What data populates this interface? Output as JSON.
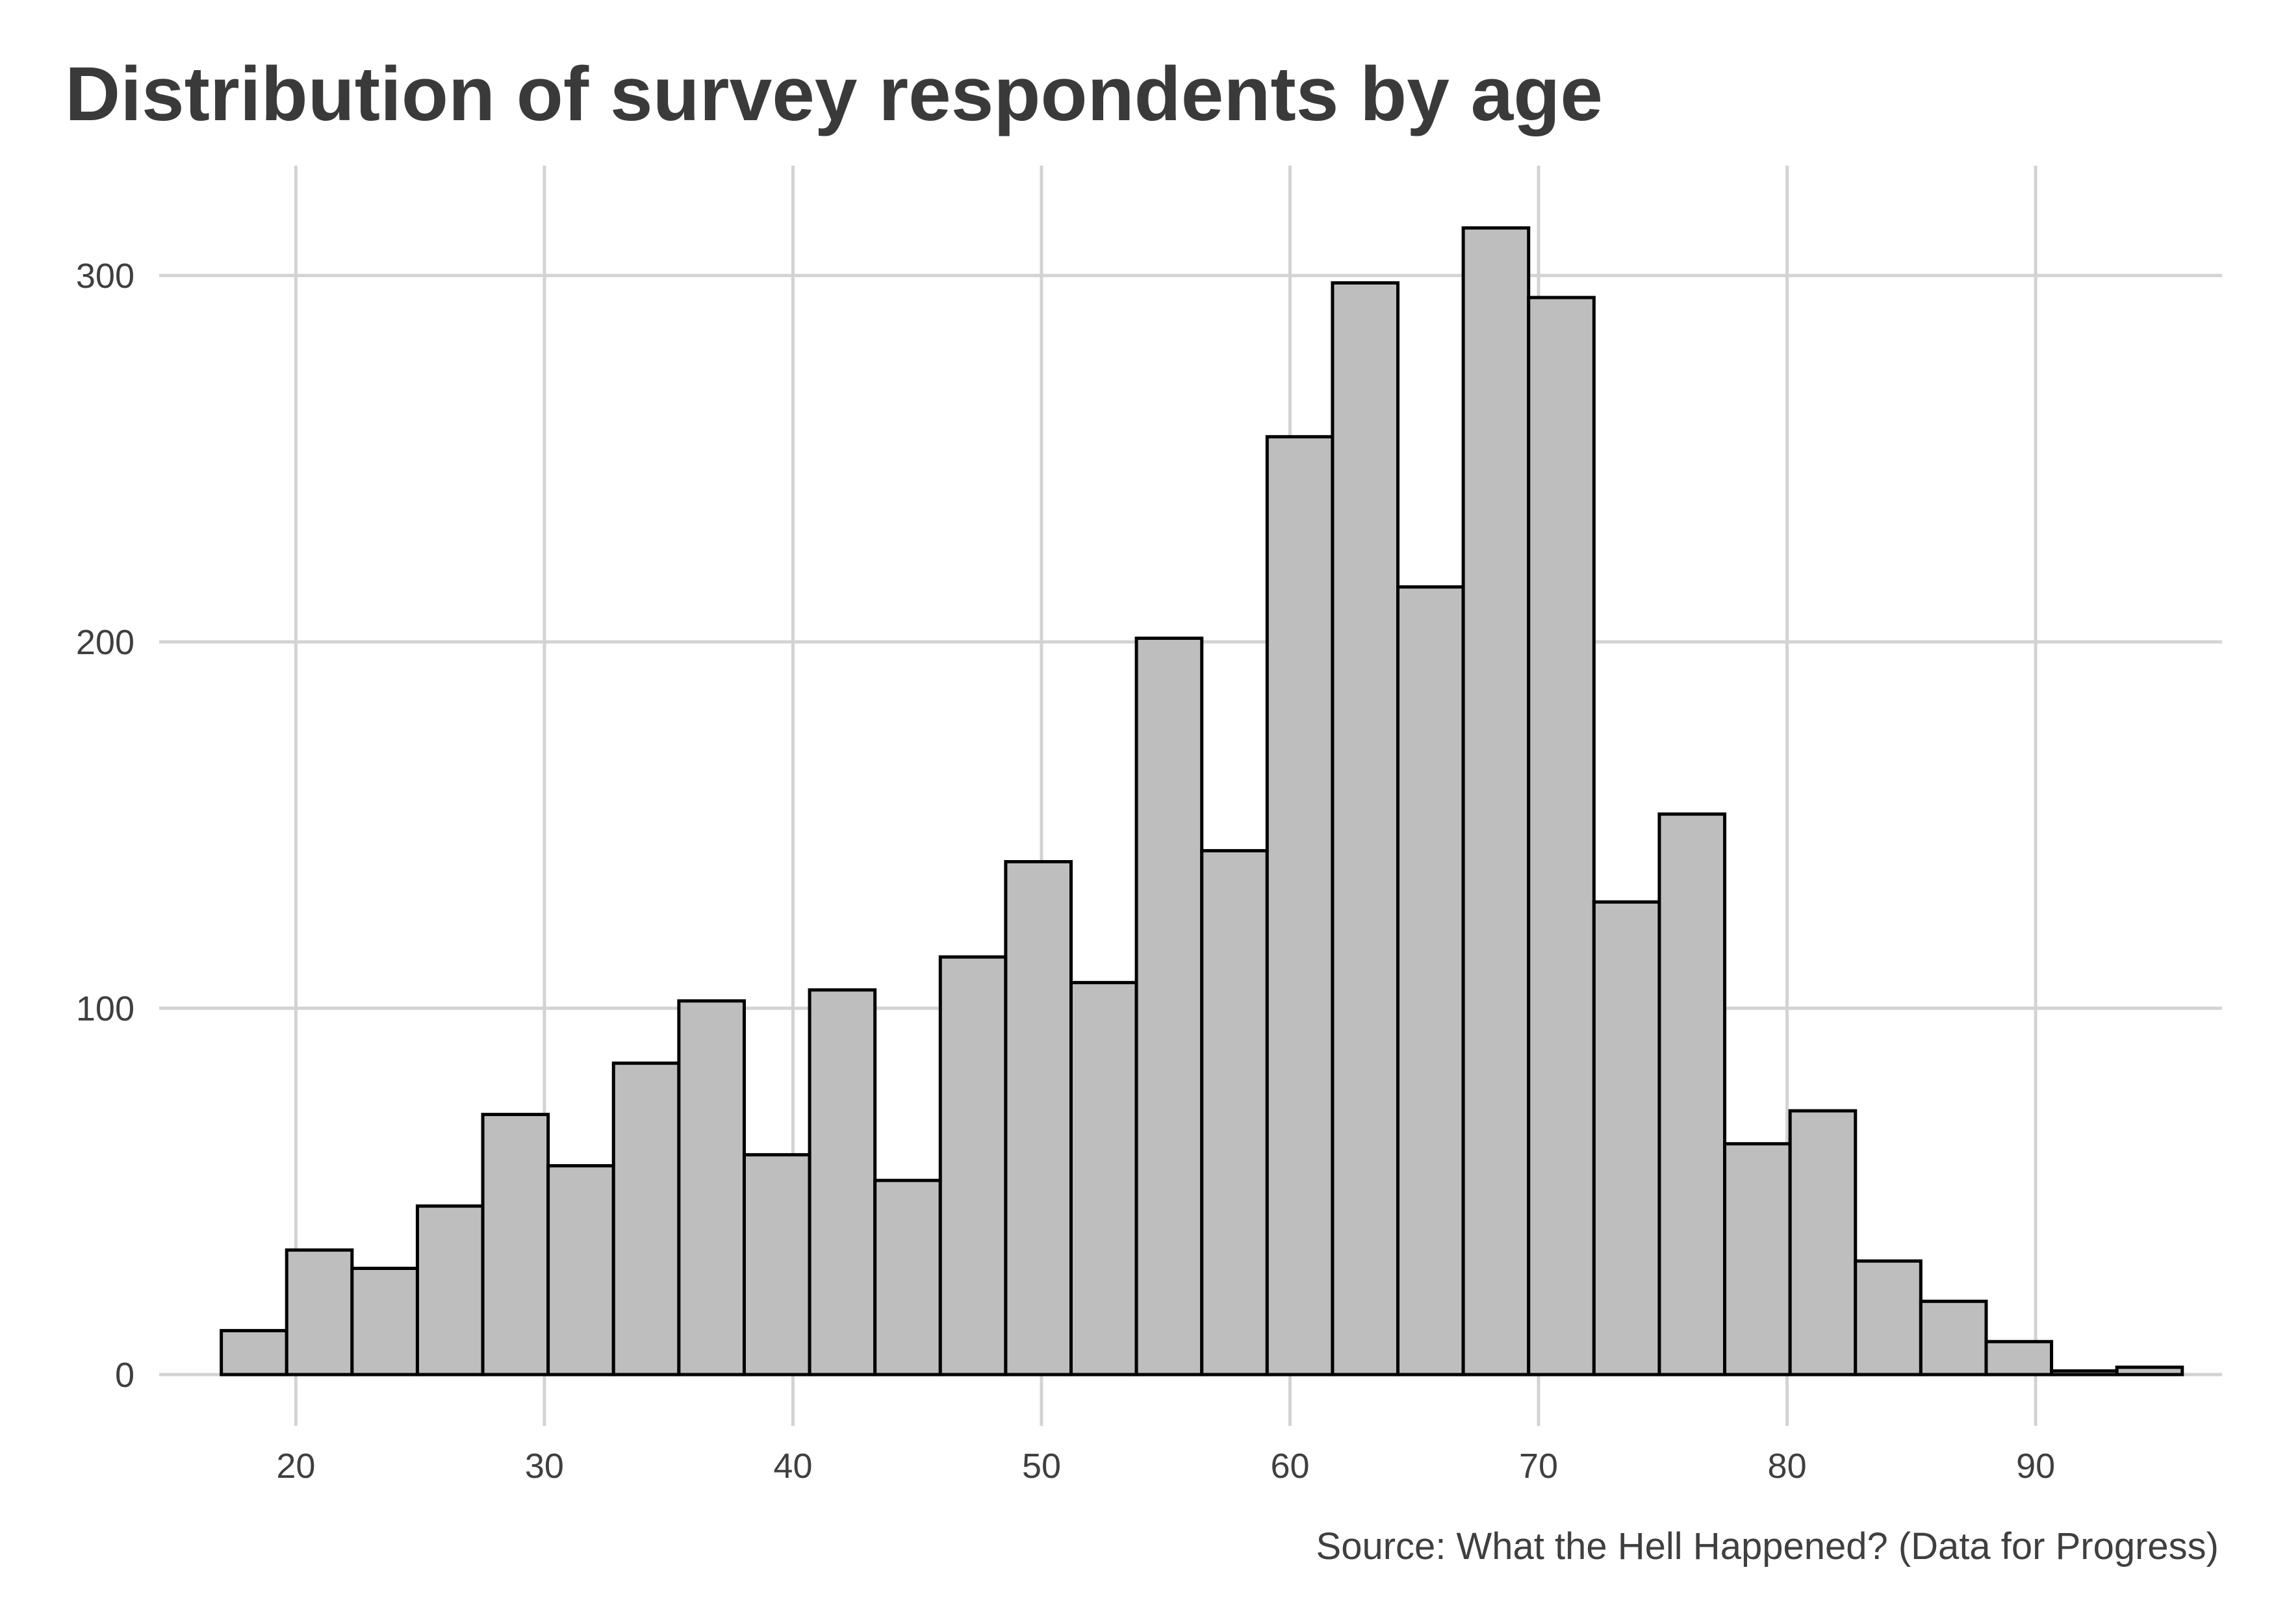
{
  "chart_data": {
    "type": "bar",
    "title": "Distribution of survey respondents by age",
    "caption": "Source: What the Hell Happened? (Data for Progress)",
    "xlabel": "",
    "ylabel": "",
    "xlim": [
      14.5,
      97.5
    ],
    "ylim": [
      -14,
      330
    ],
    "x_ticks": [
      20,
      30,
      40,
      50,
      60,
      70,
      80,
      90
    ],
    "y_ticks": [
      0,
      100,
      200,
      300
    ],
    "grid": true,
    "bin_width": 2.63,
    "bin_start": 17.0,
    "values": [
      12,
      34,
      29,
      46,
      71,
      57,
      85,
      102,
      60,
      105,
      53,
      114,
      140,
      107,
      201,
      143,
      256,
      298,
      215,
      313,
      294,
      129,
      153,
      63,
      72,
      31,
      20,
      9,
      1,
      2
    ],
    "colors": {
      "bar_fill": "#bebebe",
      "bar_outline": "#000000",
      "grid": "#d3d3d3",
      "text": "#3a3a3a"
    }
  }
}
